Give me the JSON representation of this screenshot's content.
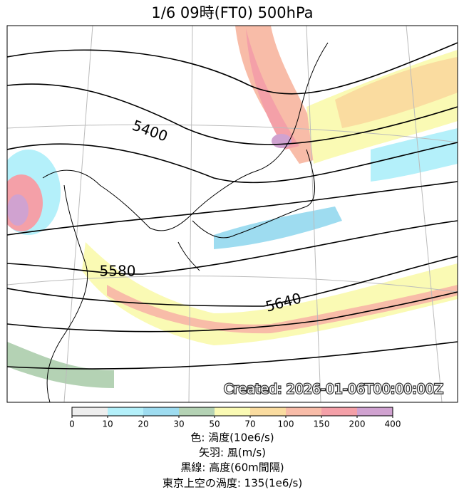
{
  "title": "1/6  09時(FT0)    500hPa",
  "contour_labels": [
    "5400",
    "5580",
    "5640"
  ],
  "credit": "Created: 2026-01-06T00:00:00Z",
  "colorbar": {
    "ticks": [
      0,
      10,
      20,
      30,
      50,
      70,
      100,
      150,
      200,
      400
    ],
    "colors": [
      "#eeeeee",
      "#b4f0fa",
      "#9edcf0",
      "#b4d2b4",
      "#fafab4",
      "#fadca0",
      "#f8bca8",
      "#f4a0a8",
      "#d0a2d0"
    ]
  },
  "legend": [
    "色: 渦度(10e6/s)",
    "矢羽: 風(m/s)",
    "黒線: 高度(60m間隔)",
    "東京上空の渦度: 135(1e6/s)"
  ]
}
